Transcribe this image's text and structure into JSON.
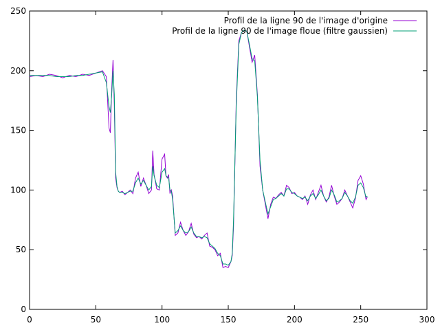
{
  "chart_data": {
    "type": "line",
    "title": "",
    "xlabel": "",
    "ylabel": "",
    "xlim": [
      0,
      300
    ],
    "ylim": [
      0,
      250
    ],
    "xticks": [
      0,
      50,
      100,
      150,
      200,
      250,
      300
    ],
    "yticks": [
      0,
      50,
      100,
      150,
      200,
      250
    ],
    "xtick_labels": [
      "0",
      "50",
      "100",
      "150",
      "200",
      "250",
      "300"
    ],
    "ytick_labels": [
      "0",
      "50",
      "100",
      "150",
      "200",
      "250"
    ],
    "grid": false,
    "legend_position": "top-right",
    "series": [
      {
        "name": "Profil de la ligne 90 de l'image d'origine",
        "color": "#9400d3",
        "x": [
          0,
          5,
          10,
          15,
          20,
          25,
          30,
          35,
          40,
          45,
          50,
          55,
          58,
          60,
          61,
          62,
          63,
          64,
          65,
          66,
          67,
          68,
          70,
          72,
          74,
          76,
          78,
          80,
          82,
          84,
          86,
          88,
          90,
          92,
          93,
          94,
          96,
          98,
          100,
          102,
          103,
          104,
          105,
          106,
          107,
          108,
          110,
          112,
          114,
          116,
          118,
          120,
          122,
          124,
          126,
          128,
          130,
          132,
          134,
          136,
          138,
          140,
          142,
          144,
          146,
          148,
          150,
          152,
          153,
          154,
          155,
          156,
          158,
          160,
          162,
          164,
          166,
          168,
          170,
          172,
          174,
          176,
          178,
          180,
          182,
          184,
          186,
          188,
          190,
          192,
          194,
          196,
          198,
          200,
          202,
          204,
          206,
          208,
          210,
          212,
          214,
          216,
          218,
          220,
          222,
          224,
          226,
          228,
          230,
          232,
          234,
          236,
          238,
          240,
          242,
          244,
          246,
          248,
          250,
          252,
          254,
          255
        ],
        "y": [
          195,
          196,
          195,
          197,
          196,
          194,
          196,
          195,
          197,
          196,
          198,
          200,
          195,
          152,
          148,
          185,
          209,
          170,
          110,
          102,
          99,
          98,
          99,
          96,
          98,
          100,
          97,
          110,
          115,
          103,
          110,
          104,
          97,
          100,
          133,
          113,
          101,
          100,
          126,
          130,
          112,
          110,
          113,
          97,
          100,
          95,
          62,
          64,
          73,
          66,
          62,
          65,
          72,
          63,
          60,
          61,
          59,
          62,
          64,
          53,
          52,
          50,
          45,
          47,
          35,
          36,
          35,
          40,
          45,
          70,
          120,
          175,
          225,
          232,
          234,
          233,
          220,
          207,
          213,
          180,
          120,
          100,
          88,
          76,
          88,
          94,
          93,
          96,
          98,
          95,
          104,
          102,
          97,
          98,
          95,
          94,
          92,
          95,
          88,
          96,
          100,
          92,
          98,
          104,
          95,
          90,
          94,
          104,
          95,
          88,
          90,
          93,
          100,
          95,
          90,
          85,
          93,
          108,
          112,
          105,
          92,
          94
        ]
      },
      {
        "name": "Profil de la ligne 90 de l'image floue (filtre gaussien)",
        "color": "#009e73",
        "x": [
          0,
          5,
          10,
          15,
          20,
          25,
          30,
          35,
          40,
          45,
          50,
          55,
          58,
          60,
          61,
          62,
          63,
          64,
          65,
          66,
          67,
          68,
          70,
          72,
          74,
          76,
          78,
          80,
          82,
          84,
          86,
          88,
          90,
          92,
          93,
          94,
          96,
          98,
          100,
          102,
          103,
          104,
          105,
          106,
          107,
          108,
          110,
          112,
          114,
          116,
          118,
          120,
          122,
          124,
          126,
          128,
          130,
          132,
          134,
          136,
          138,
          140,
          142,
          144,
          146,
          148,
          150,
          152,
          153,
          154,
          155,
          156,
          158,
          160,
          162,
          164,
          166,
          168,
          170,
          172,
          174,
          176,
          178,
          180,
          182,
          184,
          186,
          188,
          190,
          192,
          194,
          196,
          198,
          200,
          202,
          204,
          206,
          208,
          210,
          212,
          214,
          216,
          218,
          220,
          222,
          224,
          226,
          228,
          230,
          232,
          234,
          236,
          238,
          240,
          242,
          244,
          246,
          248,
          250,
          252,
          254,
          255
        ],
        "y": [
          196,
          196,
          196,
          196,
          195,
          195,
          195,
          196,
          196,
          197,
          198,
          199,
          190,
          170,
          165,
          180,
          200,
          180,
          115,
          103,
          99,
          98,
          98,
          97,
          98,
          99,
          99,
          106,
          110,
          105,
          108,
          104,
          100,
          103,
          120,
          112,
          104,
          102,
          115,
          118,
          112,
          111,
          110,
          100,
          99,
          92,
          64,
          66,
          70,
          66,
          64,
          65,
          69,
          64,
          61,
          61,
          60,
          61,
          60,
          55,
          53,
          51,
          47,
          45,
          38,
          38,
          37,
          40,
          47,
          75,
          122,
          170,
          222,
          232,
          234,
          233,
          222,
          210,
          208,
          178,
          125,
          100,
          90,
          80,
          86,
          92,
          93,
          95,
          97,
          95,
          101,
          101,
          98,
          97,
          95,
          94,
          93,
          94,
          91,
          95,
          97,
          93,
          96,
          100,
          95,
          91,
          93,
          100,
          96,
          90,
          91,
          93,
          98,
          95,
          91,
          89,
          94,
          104,
          106,
          102,
          94,
          95
        ]
      }
    ]
  }
}
